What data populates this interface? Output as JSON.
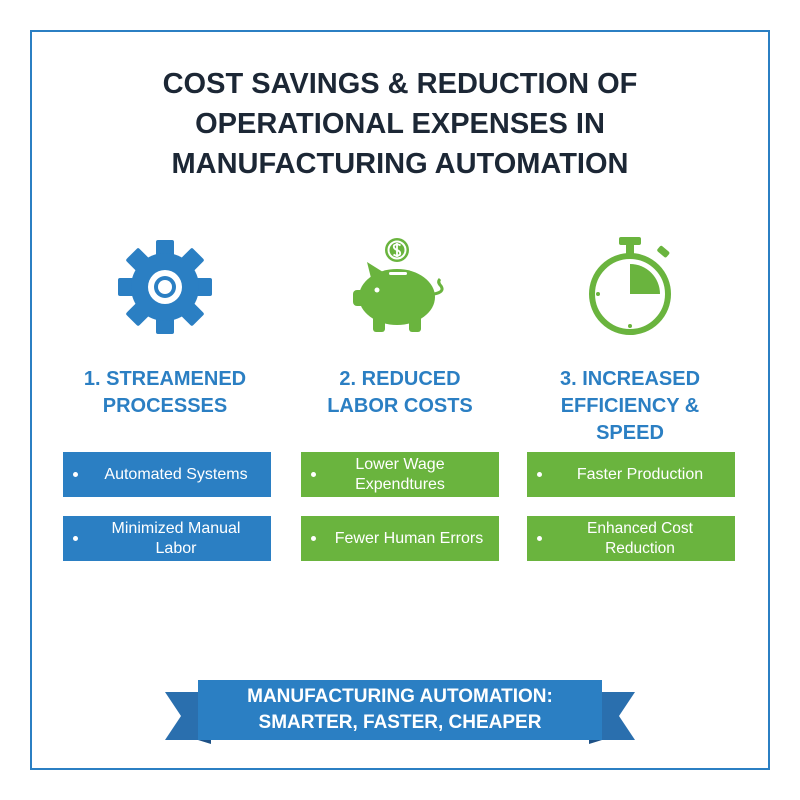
{
  "title": [
    "COST SAVINGS & REDUCTION OF",
    "OPERATIONAL EXPENSES IN",
    "MANUFACTURING AUTOMATION"
  ],
  "columns": [
    {
      "heading": [
        "1. STREAMENED",
        "PROCESSES"
      ],
      "items": [
        "Automated Systems",
        "Minimized Manual Labor"
      ]
    },
    {
      "heading": [
        "2. REDUCED",
        "LABOR COSTS"
      ],
      "items": [
        "Lower Wage Expendtures",
        "Fewer Human Errors"
      ]
    },
    {
      "heading": [
        "3. INCREASED",
        "EFFICIENCY &",
        "SPEED"
      ],
      "items": [
        "Faster Production",
        "Enhanced Cost Reduction"
      ]
    }
  ],
  "banner": [
    "MANUFACTURING AUTOMATION:",
    "SMARTER, FASTER, CHEAPER"
  ]
}
